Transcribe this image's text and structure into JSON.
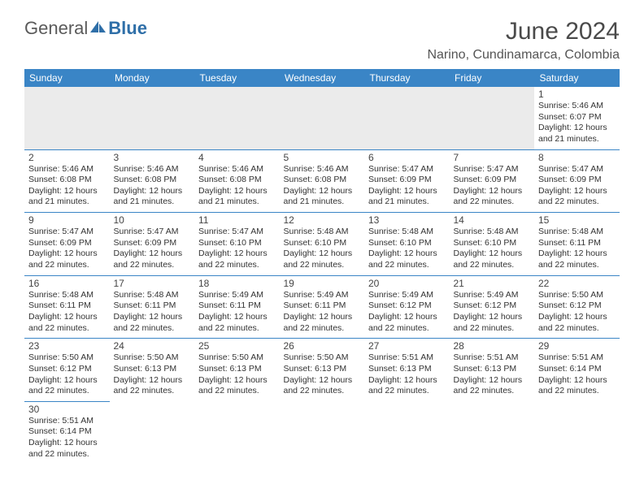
{
  "logo": {
    "general": "General",
    "blue": "Blue"
  },
  "title": "June 2024",
  "location": "Narino, Cundinamarca, Colombia",
  "colors": {
    "header_bg": "#3a85c6",
    "header_text": "#ffffff",
    "border": "#3a85c6",
    "logo_gray": "#5a5a5a",
    "logo_blue": "#2f6fa8",
    "month_text": "#4a4a4a",
    "body_text": "#333333",
    "first_row_bg": "#ebebeb"
  },
  "dayHeaders": [
    "Sunday",
    "Monday",
    "Tuesday",
    "Wednesday",
    "Thursday",
    "Friday",
    "Saturday"
  ],
  "weeks": [
    [
      null,
      null,
      null,
      null,
      null,
      null,
      {
        "n": "1",
        "sr": "5:46 AM",
        "ss": "6:07 PM",
        "dl1": "12 hours",
        "dl2": "and 21 minutes."
      }
    ],
    [
      {
        "n": "2",
        "sr": "5:46 AM",
        "ss": "6:08 PM",
        "dl1": "12 hours",
        "dl2": "and 21 minutes."
      },
      {
        "n": "3",
        "sr": "5:46 AM",
        "ss": "6:08 PM",
        "dl1": "12 hours",
        "dl2": "and 21 minutes."
      },
      {
        "n": "4",
        "sr": "5:46 AM",
        "ss": "6:08 PM",
        "dl1": "12 hours",
        "dl2": "and 21 minutes."
      },
      {
        "n": "5",
        "sr": "5:46 AM",
        "ss": "6:08 PM",
        "dl1": "12 hours",
        "dl2": "and 21 minutes."
      },
      {
        "n": "6",
        "sr": "5:47 AM",
        "ss": "6:09 PM",
        "dl1": "12 hours",
        "dl2": "and 21 minutes."
      },
      {
        "n": "7",
        "sr": "5:47 AM",
        "ss": "6:09 PM",
        "dl1": "12 hours",
        "dl2": "and 22 minutes."
      },
      {
        "n": "8",
        "sr": "5:47 AM",
        "ss": "6:09 PM",
        "dl1": "12 hours",
        "dl2": "and 22 minutes."
      }
    ],
    [
      {
        "n": "9",
        "sr": "5:47 AM",
        "ss": "6:09 PM",
        "dl1": "12 hours",
        "dl2": "and 22 minutes."
      },
      {
        "n": "10",
        "sr": "5:47 AM",
        "ss": "6:09 PM",
        "dl1": "12 hours",
        "dl2": "and 22 minutes."
      },
      {
        "n": "11",
        "sr": "5:47 AM",
        "ss": "6:10 PM",
        "dl1": "12 hours",
        "dl2": "and 22 minutes."
      },
      {
        "n": "12",
        "sr": "5:48 AM",
        "ss": "6:10 PM",
        "dl1": "12 hours",
        "dl2": "and 22 minutes."
      },
      {
        "n": "13",
        "sr": "5:48 AM",
        "ss": "6:10 PM",
        "dl1": "12 hours",
        "dl2": "and 22 minutes."
      },
      {
        "n": "14",
        "sr": "5:48 AM",
        "ss": "6:10 PM",
        "dl1": "12 hours",
        "dl2": "and 22 minutes."
      },
      {
        "n": "15",
        "sr": "5:48 AM",
        "ss": "6:11 PM",
        "dl1": "12 hours",
        "dl2": "and 22 minutes."
      }
    ],
    [
      {
        "n": "16",
        "sr": "5:48 AM",
        "ss": "6:11 PM",
        "dl1": "12 hours",
        "dl2": "and 22 minutes."
      },
      {
        "n": "17",
        "sr": "5:48 AM",
        "ss": "6:11 PM",
        "dl1": "12 hours",
        "dl2": "and 22 minutes."
      },
      {
        "n": "18",
        "sr": "5:49 AM",
        "ss": "6:11 PM",
        "dl1": "12 hours",
        "dl2": "and 22 minutes."
      },
      {
        "n": "19",
        "sr": "5:49 AM",
        "ss": "6:11 PM",
        "dl1": "12 hours",
        "dl2": "and 22 minutes."
      },
      {
        "n": "20",
        "sr": "5:49 AM",
        "ss": "6:12 PM",
        "dl1": "12 hours",
        "dl2": "and 22 minutes."
      },
      {
        "n": "21",
        "sr": "5:49 AM",
        "ss": "6:12 PM",
        "dl1": "12 hours",
        "dl2": "and 22 minutes."
      },
      {
        "n": "22",
        "sr": "5:50 AM",
        "ss": "6:12 PM",
        "dl1": "12 hours",
        "dl2": "and 22 minutes."
      }
    ],
    [
      {
        "n": "23",
        "sr": "5:50 AM",
        "ss": "6:12 PM",
        "dl1": "12 hours",
        "dl2": "and 22 minutes."
      },
      {
        "n": "24",
        "sr": "5:50 AM",
        "ss": "6:13 PM",
        "dl1": "12 hours",
        "dl2": "and 22 minutes."
      },
      {
        "n": "25",
        "sr": "5:50 AM",
        "ss": "6:13 PM",
        "dl1": "12 hours",
        "dl2": "and 22 minutes."
      },
      {
        "n": "26",
        "sr": "5:50 AM",
        "ss": "6:13 PM",
        "dl1": "12 hours",
        "dl2": "and 22 minutes."
      },
      {
        "n": "27",
        "sr": "5:51 AM",
        "ss": "6:13 PM",
        "dl1": "12 hours",
        "dl2": "and 22 minutes."
      },
      {
        "n": "28",
        "sr": "5:51 AM",
        "ss": "6:13 PM",
        "dl1": "12 hours",
        "dl2": "and 22 minutes."
      },
      {
        "n": "29",
        "sr": "5:51 AM",
        "ss": "6:14 PM",
        "dl1": "12 hours",
        "dl2": "and 22 minutes."
      }
    ],
    [
      {
        "n": "30",
        "sr": "5:51 AM",
        "ss": "6:14 PM",
        "dl1": "12 hours",
        "dl2": "and 22 minutes."
      },
      null,
      null,
      null,
      null,
      null,
      null
    ]
  ],
  "labels": {
    "sunrise": "Sunrise:",
    "sunset": "Sunset:",
    "daylight": "Daylight:"
  }
}
